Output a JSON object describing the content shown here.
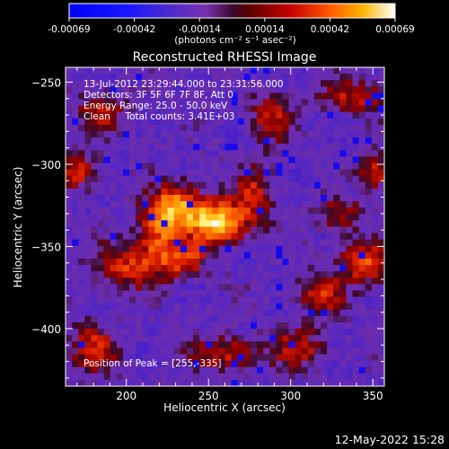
{
  "chart_data": {
    "type": "heatmap",
    "title": "Reconstructed RHESSI Image",
    "xlabel": "Heliocentric X (arcsec)",
    "ylabel": "Heliocentric Y (arcsec)",
    "xlim": [
      163,
      357
    ],
    "ylim": [
      -435,
      -241
    ],
    "x_ticks": [
      200,
      250,
      300,
      350
    ],
    "y_ticks": [
      -250,
      -300,
      -350,
      -400
    ],
    "colorbar": {
      "range": [
        -0.00069,
        0.00069
      ],
      "ticks": [
        "-0.00069",
        "-0.00042",
        "-0.00014",
        "0.00014",
        "0.00042",
        "0.00069"
      ],
      "units_label": "(photons cm⁻² s⁻¹ asec⁻²)"
    },
    "annotations": [
      "13-Jul-2012 23:29:44.000 to 23:31:56.000",
      "Detectors: 3F 5F 6F 7F 8F, Att 0",
      "Energy Range: 25.0 - 50.0 keV",
      "Clean     Total counts: 3.41E+03"
    ],
    "peak_label": "Position of Peak = [255,-335]",
    "peak": {
      "x": 255,
      "y": -335
    },
    "hotspots": [
      {
        "x": 255,
        "y": -335,
        "amp": 1.0,
        "sx": 12,
        "sy": 9
      },
      {
        "x": 232,
        "y": -325,
        "amp": 0.72,
        "sx": 10,
        "sy": 9
      },
      {
        "x": 220,
        "y": -342,
        "amp": 0.62,
        "sx": 9,
        "sy": 14
      },
      {
        "x": 200,
        "y": -362,
        "amp": 0.52,
        "sx": 14,
        "sy": 9
      },
      {
        "x": 236,
        "y": -358,
        "amp": 0.55,
        "sx": 9,
        "sy": 7
      },
      {
        "x": 278,
        "y": -318,
        "amp": 0.45,
        "sx": 8,
        "sy": 12
      },
      {
        "x": 288,
        "y": -272,
        "amp": 0.45,
        "sx": 9,
        "sy": 10
      },
      {
        "x": 338,
        "y": -258,
        "amp": 0.45,
        "sx": 14,
        "sy": 7
      },
      {
        "x": 345,
        "y": -360,
        "amp": 0.58,
        "sx": 11,
        "sy": 9
      },
      {
        "x": 318,
        "y": -380,
        "amp": 0.5,
        "sx": 10,
        "sy": 9
      },
      {
        "x": 260,
        "y": -415,
        "amp": 0.45,
        "sx": 15,
        "sy": 7
      },
      {
        "x": 305,
        "y": -412,
        "amp": 0.45,
        "sx": 11,
        "sy": 8
      },
      {
        "x": 180,
        "y": -412,
        "amp": 0.5,
        "sx": 10,
        "sy": 10
      },
      {
        "x": 170,
        "y": -305,
        "amp": 0.5,
        "sx": 8,
        "sy": 7
      },
      {
        "x": 352,
        "y": -305,
        "amp": 0.5,
        "sx": 7,
        "sy": 8
      },
      {
        "x": 185,
        "y": -268,
        "amp": 0.42,
        "sx": 10,
        "sy": 8
      },
      {
        "x": 330,
        "y": -330,
        "amp": 0.4,
        "sx": 9,
        "sy": 7
      }
    ]
  },
  "footer_timestamp": "12-May-2022 15:28"
}
